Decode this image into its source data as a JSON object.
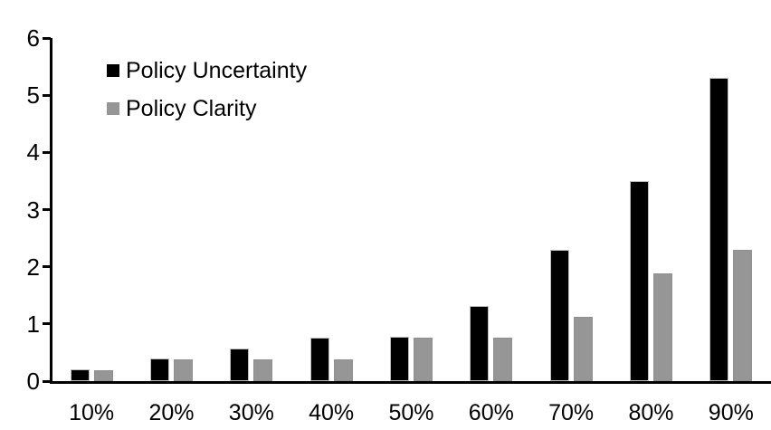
{
  "chart_data": {
    "type": "bar",
    "title": "",
    "xlabel": "",
    "ylabel": "",
    "categories": [
      "10%",
      "20%",
      "30%",
      "40%",
      "50%",
      "60%",
      "70%",
      "80%",
      "90%"
    ],
    "series": [
      {
        "name": "Policy Uncertainty",
        "color": "#000000",
        "values": [
          0.2,
          0.4,
          0.57,
          0.76,
          0.77,
          1.32,
          2.3,
          3.5,
          5.3
        ]
      },
      {
        "name": "Policy Clarity",
        "color": "#969696",
        "values": [
          0.19,
          0.38,
          0.38,
          0.38,
          0.76,
          0.76,
          1.13,
          1.88,
          2.3
        ]
      }
    ],
    "ylim": [
      0,
      6
    ],
    "yticks": [
      0,
      1,
      2,
      3,
      4,
      5,
      6
    ],
    "grid": false,
    "legend_position": "top-left-inside",
    "axis_color": "#000000",
    "background_color": "#ffffff"
  }
}
